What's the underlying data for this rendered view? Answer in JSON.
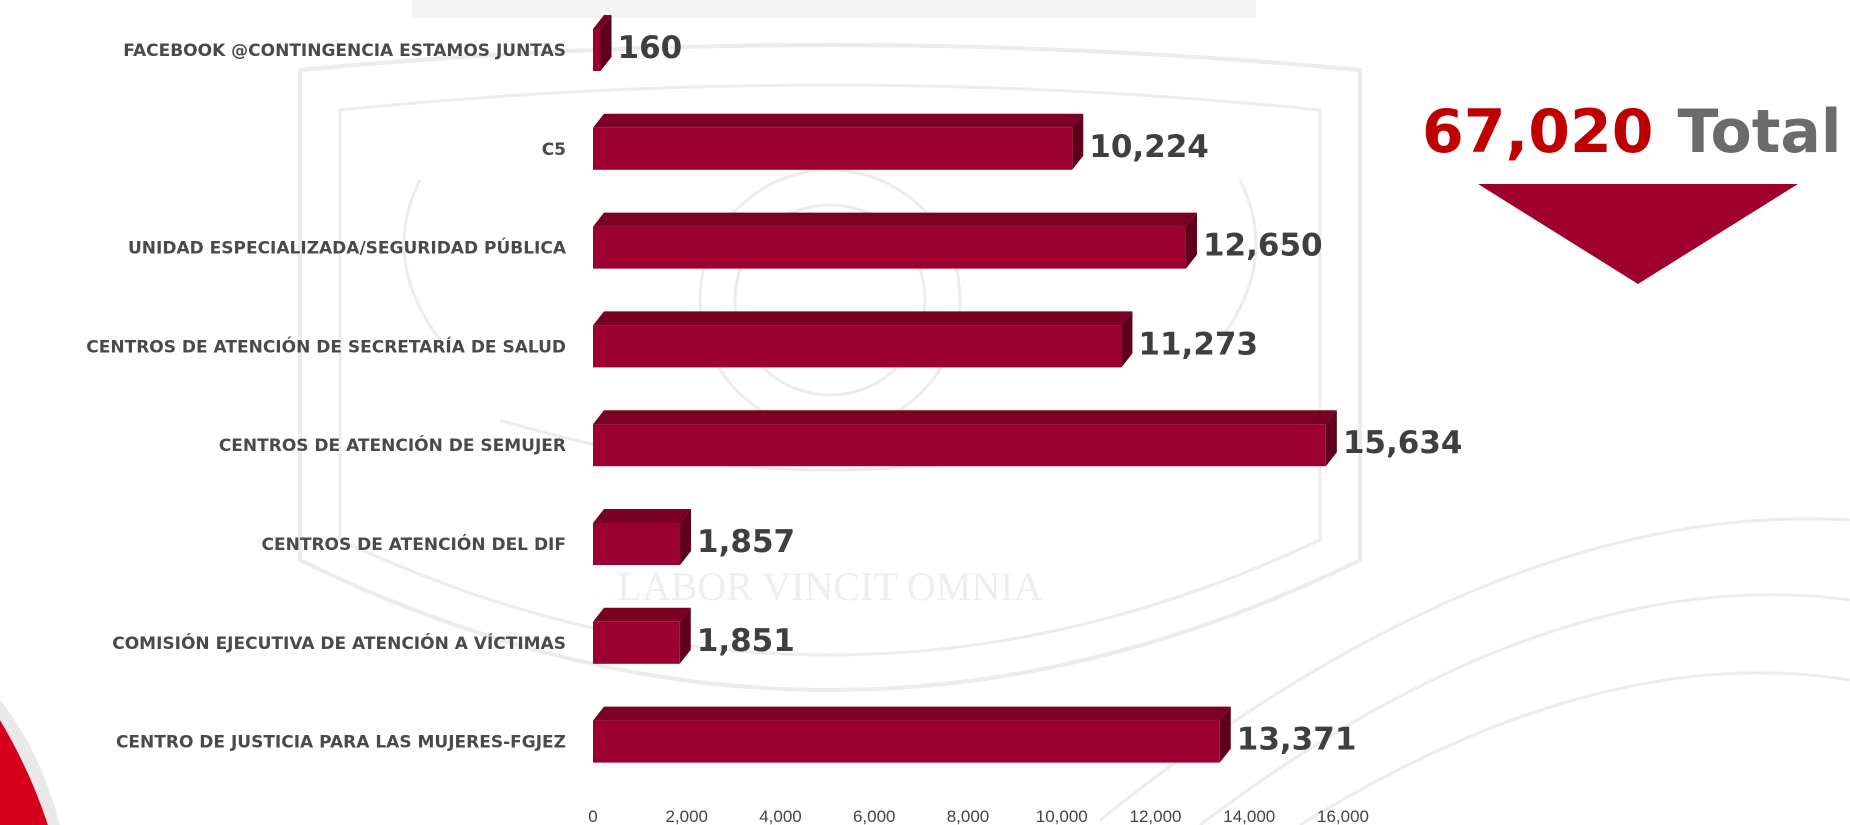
{
  "chart_data": {
    "type": "bar",
    "orientation": "horizontal",
    "categories": [
      "FACEBOOK @CONTINGENCIA ESTAMOS JUNTAS",
      "C5",
      "UNIDAD ESPECIALIZADA/SEGURIDAD PÚBLICA",
      "CENTROS DE ATENCIÓN  DE SECRETARÍA  DE SALUD",
      "CENTROS DE ATENCIÓN DE SEMUJER",
      "CENTROS DE ATENCIÓN  DEL DIF",
      "COMISIÓN EJECUTIVA DE ATENCIÓN A VÍCTIMAS",
      "CENTRO DE JUSTICIA PARA LAS MUJERES-FGJEZ"
    ],
    "values": [
      160,
      10224,
      12650,
      11273,
      15634,
      1857,
      1851,
      13371
    ],
    "value_labels": [
      "160",
      "10,224",
      "12,650",
      "11,273",
      "15,634",
      "1,857",
      "1,851",
      "13,371"
    ],
    "xlim": [
      0,
      16000
    ],
    "ticks": [
      0,
      2000,
      4000,
      6000,
      8000,
      10000,
      12000,
      14000,
      16000
    ],
    "tick_labels": [
      "0",
      "2,000",
      "4,000",
      "6,000",
      "8,000",
      "10,000",
      "12,000",
      "14,000",
      "16,000"
    ],
    "title": "",
    "xlabel": "",
    "ylabel": "",
    "grid": false,
    "bar_color": "#9b0030",
    "bar_top_color": "#7a0024",
    "bar_side_color": "#5e001b"
  },
  "total": {
    "value": "67,020",
    "label": "Total",
    "value_color": "#c00000",
    "label_color": "#6b6b6b",
    "arrow_color": "#a0002e"
  },
  "background": {
    "watermark_text": "LABOR VINCIT OMNIA"
  }
}
